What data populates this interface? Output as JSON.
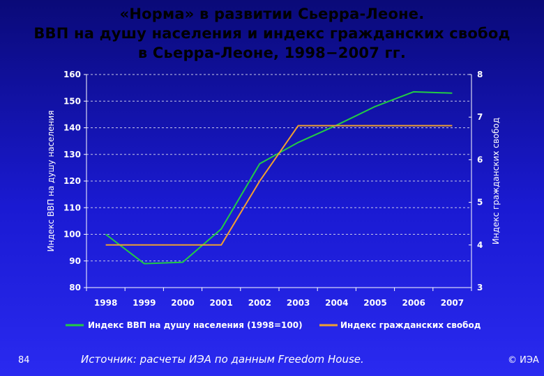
{
  "slide": {
    "title_lines": [
      "«Норма» в развитии Сьерра-Леоне.",
      "ВВП на душу населения и индекс гражданских свобод",
      "в Сьерра-Леоне, 1998−2007 гг."
    ],
    "page_number": "84",
    "source": "Источник: расчеты ИЭА по данным Freedom House.",
    "copyright": "© ИЭА"
  },
  "chart_data": {
    "type": "line",
    "categories": [
      "1998",
      "1999",
      "2000",
      "2001",
      "2002",
      "2003",
      "2004",
      "2005",
      "2006",
      "2007"
    ],
    "ylabel": "Индекс ВВП на душу населения",
    "y2label": "Индекс гражданских свобод",
    "ylim": [
      80,
      160
    ],
    "y_ticks": [
      "80",
      "90",
      "100",
      "110",
      "120",
      "130",
      "140",
      "150",
      "160"
    ],
    "y2lim": [
      3,
      8
    ],
    "y2_ticks": [
      "3",
      "4",
      "5",
      "6",
      "7",
      "8"
    ],
    "grid": "horizontal dashed",
    "legend_position": "bottom",
    "series": [
      {
        "name": "Индекс ВВП на душу населения (1998=100)",
        "axis": "left",
        "color": "#22cc44",
        "values": [
          100,
          89,
          89.5,
          102,
          126.5,
          134.5,
          141,
          148,
          153.5,
          153
        ]
      },
      {
        "name": "Индекс гражданских свобод",
        "axis": "right",
        "color": "#f0a030",
        "values": [
          4.0,
          4.0,
          4.0,
          4.0,
          5.5,
          6.8,
          6.8,
          6.8,
          6.8,
          6.8
        ]
      }
    ]
  }
}
